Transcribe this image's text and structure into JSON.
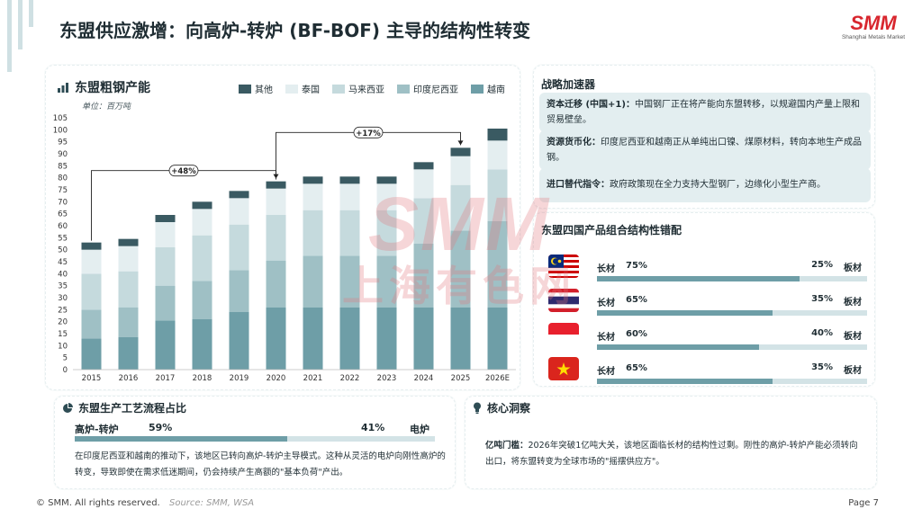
{
  "page_title": "东盟供应激增：向高炉-转炉 (BF-BOF) 主导的结构性转变",
  "logo": {
    "mark": "SMM",
    "subtitle": "Shanghai Metals Market"
  },
  "watermark": {
    "line1": "SMM",
    "line2": "上海有色网"
  },
  "colors": {
    "primary": "#6e9ea7",
    "dark": "#2f4d55",
    "accent": "#d8262e"
  },
  "chart_data": {
    "type": "stacked-bar",
    "title": "东盟粗钢产能",
    "unit": "单位：百万吨",
    "categories": [
      "2015",
      "2016",
      "2017",
      "2018",
      "2019",
      "2020",
      "2021",
      "2022",
      "2023",
      "2024",
      "2025",
      "2026E"
    ],
    "ylim": [
      0,
      105
    ],
    "yticks": [
      0,
      5,
      10,
      15,
      20,
      25,
      30,
      35,
      40,
      45,
      50,
      55,
      60,
      65,
      70,
      75,
      80,
      85,
      90,
      95,
      100,
      105
    ],
    "series": [
      {
        "name": "越南",
        "color": "#6e9ea7",
        "values": [
          13,
          13.5,
          20.5,
          21,
          24,
          26,
          26,
          26,
          26,
          26,
          26,
          26
        ]
      },
      {
        "name": "印度尼西亚",
        "color": "#9fc0c5",
        "values": [
          12,
          12.5,
          14.5,
          16,
          17.5,
          19.5,
          21.5,
          21.5,
          21.5,
          26.5,
          32,
          36
        ]
      },
      {
        "name": "马来西亚",
        "color": "#c5dadd",
        "values": [
          15,
          15,
          16,
          19,
          19,
          19,
          19,
          19,
          19,
          19,
          19,
          21.5
        ]
      },
      {
        "name": "泰国",
        "color": "#e4eef0",
        "values": [
          10,
          10.5,
          10.5,
          11,
          11,
          11,
          11,
          11,
          11,
          12,
          12,
          12
        ]
      },
      {
        "name": "其他",
        "color": "#3a5a62",
        "values": [
          3,
          3,
          3,
          3,
          3,
          3,
          3,
          3,
          3,
          3,
          3.5,
          5
        ]
      }
    ],
    "annotations": [
      {
        "label": "+48%",
        "from": "2015",
        "to": "2020"
      },
      {
        "label": "+17%",
        "from": "2020",
        "to": "2025"
      }
    ]
  },
  "strategy": {
    "title": "战略加速器",
    "items": [
      {
        "label": "资本迁移 (中国+1)：",
        "text": "中国钢厂正在将产能向东盟转移，以规避国内产量上限和贸易壁垒。"
      },
      {
        "label": "资源货币化：",
        "text": "印度尼西亚和越南正从单纯出口镍、煤原材料，转向本地生产成品钢。"
      },
      {
        "label": "进口替代指令：",
        "text": "政府政策现在全力支持大型钢厂，边缘化小型生产商。"
      }
    ]
  },
  "mix": {
    "title": "东盟四国产品组合结构性错配",
    "rows": [
      {
        "country": "malaysia-flag-icon",
        "left_label": "长材",
        "left_value": "75%",
        "right_value": "25%",
        "right_label": "板材",
        "fraction": 0.75
      },
      {
        "country": "thailand-flag-icon",
        "left_label": "长材",
        "left_value": "65%",
        "right_value": "35%",
        "right_label": "板材",
        "fraction": 0.65
      },
      {
        "country": "indonesia-flag-icon",
        "left_label": "长材",
        "left_value": "60%",
        "right_value": "40%",
        "right_label": "板材",
        "fraction": 0.6
      },
      {
        "country": "vietnam-flag-icon",
        "left_label": "长材",
        "left_value": "65%",
        "right_value": "35%",
        "right_label": "板材",
        "fraction": 0.65
      }
    ]
  },
  "process": {
    "title": "东盟生产工艺流程占比",
    "left_label": "高炉-转炉",
    "left_value": "59%",
    "right_value": "41%",
    "right_label": "电炉",
    "fraction": 0.59,
    "text": "在印度尼西亚和越南的推动下，该地区已转向高炉-转炉主导模式。这种从灵活的电炉向刚性高炉的转变，导致即使在需求低迷期间，仍会持续产生高额的\"基本负荷\"产出。"
  },
  "insight": {
    "title": "核心洞察",
    "label": "亿吨门槛：",
    "text": "2026年突破1亿吨大关，该地区面临长材的结构性过剩。刚性的高炉-转炉产能必须转向出口，将东盟转变为全球市场的\"摇摆供应方\"。"
  },
  "footer": {
    "copyright": "© SMM. All rights reserved.",
    "source": "Source: SMM, WSA",
    "page": "Page 7"
  }
}
